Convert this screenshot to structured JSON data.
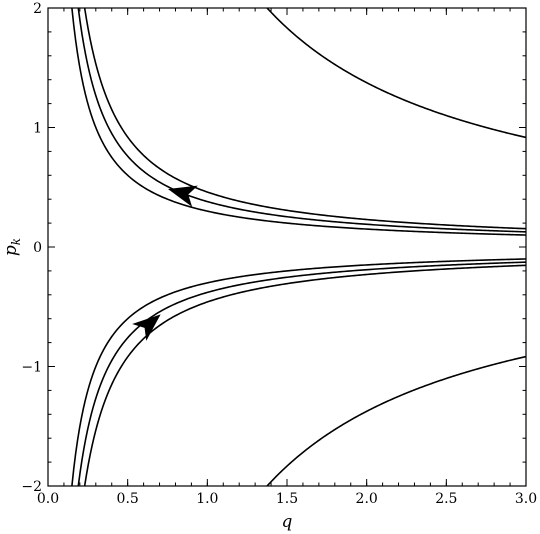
{
  "chart_data": {
    "type": "line",
    "title": "",
    "xlabel": "q",
    "ylabel_base": "p",
    "ylabel_sub": "k",
    "xlim": [
      0,
      3
    ],
    "ylim": [
      -2,
      2
    ],
    "x_ticks": [
      0,
      0.5,
      1,
      1.5,
      2,
      2.5,
      3
    ],
    "x_tick_labels": [
      "0.0",
      "0.5",
      "1.0",
      "1.5",
      "2.0",
      "2.5",
      "3.0"
    ],
    "y_ticks": [
      -2,
      -1,
      0,
      1,
      2
    ],
    "y_tick_labels": [
      "−2",
      "−1",
      "0",
      "1",
      "2"
    ],
    "grid": false,
    "legend": "none",
    "line_color": "#000000",
    "series": [
      {
        "c": 0.3
      },
      {
        "c": 0.38
      },
      {
        "c": 0.46
      },
      {
        "c": 2.75
      },
      {
        "c": -0.3
      },
      {
        "c": -0.38
      },
      {
        "c": -0.46
      },
      {
        "c": -2.75
      }
    ],
    "annotations": [
      {
        "type": "arrow",
        "x": 0.85,
        "y": 0.45,
        "direction": "up-left"
      },
      {
        "type": "arrow",
        "x": 0.63,
        "y": -0.65,
        "direction": "up-right"
      }
    ]
  }
}
